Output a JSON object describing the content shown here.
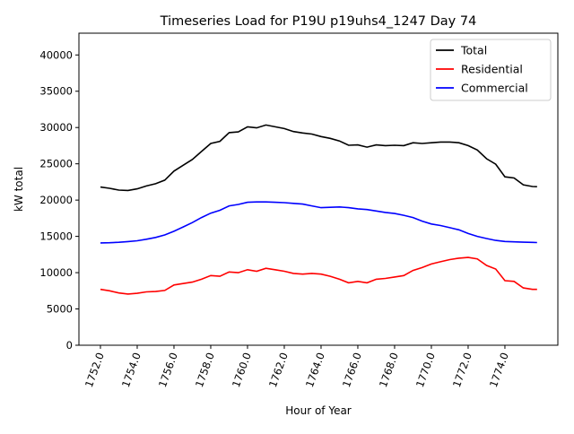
{
  "chart_data": {
    "type": "line",
    "title": "Timeseries Load for P19U p19uhs4_1247  Day 74",
    "xlabel": "Hour of Year",
    "ylabel": "kW total",
    "xlim": [
      1750.83,
      1776.88
    ],
    "ylim": [
      0,
      43000
    ],
    "xticks": [
      1752,
      1754,
      1756,
      1758,
      1760,
      1762,
      1764,
      1766,
      1768,
      1770,
      1772,
      1774
    ],
    "xtick_labels": [
      "1752.0",
      "1754.0",
      "1756.0",
      "1758.0",
      "1760.0",
      "1762.0",
      "1764.0",
      "1766.0",
      "1768.0",
      "1770.0",
      "1772.0",
      "1774.0"
    ],
    "yticks": [
      0,
      5000,
      10000,
      15000,
      20000,
      25000,
      30000,
      35000,
      40000
    ],
    "ytick_labels": [
      "0",
      "5000",
      "10000",
      "15000",
      "20000",
      "25000",
      "30000",
      "35000",
      "40000"
    ],
    "legend_position": "top-right",
    "grid": false,
    "x": [
      1752,
      1752.5,
      1753,
      1753.5,
      1754,
      1754.5,
      1755,
      1755.5,
      1756,
      1756.5,
      1757,
      1757.5,
      1758,
      1758.5,
      1759,
      1759.5,
      1760,
      1760.5,
      1761,
      1761.5,
      1762,
      1762.5,
      1763,
      1763.5,
      1764,
      1764.5,
      1765,
      1765.5,
      1766,
      1766.5,
      1767,
      1767.5,
      1768,
      1768.5,
      1769,
      1769.5,
      1770,
      1770.5,
      1771,
      1771.5,
      1772,
      1772.5,
      1773,
      1773.5,
      1774,
      1774.5,
      1775,
      1775.5,
      1775.75
    ],
    "series": [
      {
        "name": "Total",
        "color": "#000000",
        "values": [
          21800,
          21620,
          21380,
          21330,
          21550,
          21950,
          22250,
          22750,
          24000,
          24800,
          25600,
          26700,
          27800,
          28100,
          29300,
          29400,
          30100,
          29950,
          30350,
          30100,
          29850,
          29450,
          29250,
          29100,
          28750,
          28500,
          28150,
          27550,
          27600,
          27300,
          27600,
          27500,
          27550,
          27500,
          27900,
          27800,
          27900,
          28000,
          28000,
          27900,
          27500,
          26900,
          25700,
          24950,
          23200,
          23050,
          22100,
          21870,
          21850
        ]
      },
      {
        "name": "Residential",
        "color": "#ff0000",
        "values": [
          7700,
          7500,
          7200,
          7050,
          7150,
          7350,
          7400,
          7550,
          8300,
          8500,
          8700,
          9100,
          9600,
          9500,
          10100,
          10000,
          10400,
          10200,
          10600,
          10400,
          10200,
          9900,
          9800,
          9900,
          9800,
          9500,
          9100,
          8600,
          8800,
          8600,
          9100,
          9200,
          9400,
          9600,
          10300,
          10700,
          11200,
          11500,
          11800,
          12000,
          12100,
          11900,
          11000,
          10500,
          8900,
          8800,
          7900,
          7700,
          7700
        ]
      },
      {
        "name": "Commercial",
        "color": "#0000ff",
        "values": [
          14100,
          14120,
          14180,
          14280,
          14400,
          14600,
          14850,
          15200,
          15700,
          16300,
          16900,
          17600,
          18200,
          18600,
          19200,
          19400,
          19700,
          19750,
          19750,
          19700,
          19650,
          19550,
          19450,
          19200,
          18950,
          19000,
          19050,
          18950,
          18800,
          18700,
          18500,
          18300,
          18150,
          17900,
          17600,
          17100,
          16700,
          16500,
          16200,
          15900,
          15400,
          15000,
          14700,
          14450,
          14300,
          14250,
          14200,
          14170,
          14150
        ]
      }
    ]
  }
}
